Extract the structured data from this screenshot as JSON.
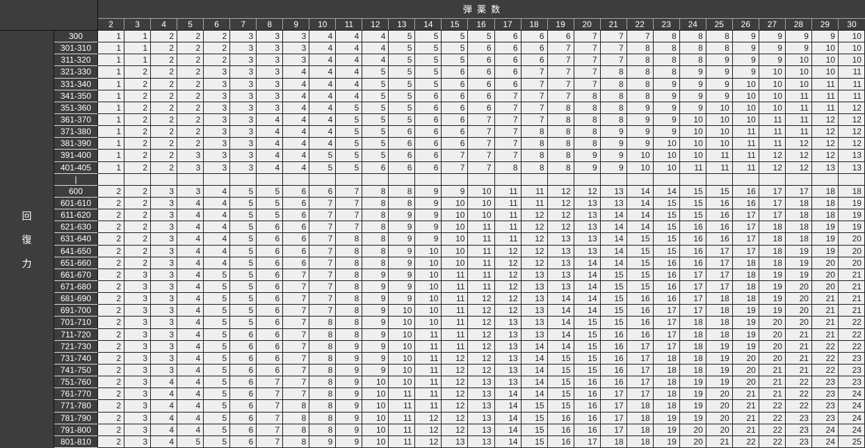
{
  "colors": {
    "header_bg": "#3d3d3d",
    "header_text": "#ffffff",
    "cell_bg": "#efefef",
    "cell_text": "#1f1f1f",
    "grid_dark": "#1c1c1c",
    "grid_light_on_dark": "#dcdcdc"
  },
  "table": {
    "title": "弾薬数",
    "side_label": "回復力",
    "columns": [
      2,
      3,
      4,
      5,
      6,
      7,
      8,
      9,
      10,
      11,
      12,
      13,
      14,
      15,
      16,
      17,
      18,
      19,
      20,
      21,
      22,
      23,
      24,
      25,
      26,
      27,
      28,
      29,
      30
    ],
    "rows": [
      {
        "label": "300",
        "values": [
          1,
          1,
          2,
          2,
          2,
          3,
          3,
          3,
          4,
          4,
          4,
          5,
          5,
          5,
          5,
          6,
          6,
          6,
          7,
          7,
          7,
          8,
          8,
          8,
          9,
          9,
          9,
          9,
          10
        ]
      },
      {
        "label": "301-310",
        "values": [
          1,
          1,
          2,
          2,
          2,
          3,
          3,
          3,
          4,
          4,
          4,
          5,
          5,
          5,
          6,
          6,
          6,
          7,
          7,
          7,
          8,
          8,
          8,
          8,
          9,
          9,
          9,
          10,
          10
        ]
      },
      {
        "label": "311-320",
        "values": [
          1,
          1,
          2,
          2,
          2,
          3,
          3,
          3,
          4,
          4,
          4,
          5,
          5,
          5,
          6,
          6,
          6,
          7,
          7,
          7,
          8,
          8,
          8,
          9,
          9,
          9,
          10,
          10,
          10
        ]
      },
      {
        "label": "321-330",
        "values": [
          1,
          2,
          2,
          2,
          3,
          3,
          3,
          4,
          4,
          4,
          5,
          5,
          5,
          6,
          6,
          6,
          7,
          7,
          7,
          8,
          8,
          8,
          9,
          9,
          9,
          10,
          10,
          10,
          11
        ]
      },
      {
        "label": "331-340",
        "values": [
          1,
          2,
          2,
          2,
          3,
          3,
          3,
          4,
          4,
          4,
          5,
          5,
          5,
          6,
          6,
          6,
          7,
          7,
          7,
          8,
          8,
          9,
          9,
          9,
          10,
          10,
          10,
          11,
          11
        ]
      },
      {
        "label": "341-350",
        "values": [
          1,
          2,
          2,
          2,
          3,
          3,
          3,
          4,
          4,
          4,
          5,
          5,
          6,
          6,
          6,
          7,
          7,
          7,
          8,
          8,
          8,
          9,
          9,
          9,
          10,
          10,
          11,
          11,
          11
        ]
      },
      {
        "label": "351-360",
        "values": [
          1,
          2,
          2,
          2,
          3,
          3,
          3,
          4,
          4,
          5,
          5,
          5,
          6,
          6,
          6,
          7,
          7,
          8,
          8,
          8,
          9,
          9,
          9,
          10,
          10,
          10,
          11,
          11,
          12
        ]
      },
      {
        "label": "361-370",
        "values": [
          1,
          2,
          2,
          2,
          3,
          3,
          4,
          4,
          4,
          5,
          5,
          5,
          6,
          6,
          7,
          7,
          7,
          8,
          8,
          8,
          9,
          9,
          10,
          10,
          10,
          11,
          11,
          12,
          12
        ]
      },
      {
        "label": "371-380",
        "values": [
          1,
          2,
          2,
          2,
          3,
          3,
          4,
          4,
          4,
          5,
          5,
          6,
          6,
          6,
          7,
          7,
          8,
          8,
          8,
          9,
          9,
          9,
          10,
          10,
          11,
          11,
          11,
          12,
          12
        ]
      },
      {
        "label": "381-390",
        "values": [
          1,
          2,
          2,
          2,
          3,
          3,
          4,
          4,
          4,
          5,
          5,
          6,
          6,
          6,
          7,
          7,
          8,
          8,
          8,
          9,
          9,
          10,
          10,
          10,
          11,
          11,
          12,
          12,
          12
        ]
      },
      {
        "label": "391-400",
        "values": [
          1,
          2,
          2,
          3,
          3,
          3,
          4,
          4,
          5,
          5,
          5,
          6,
          6,
          7,
          7,
          7,
          8,
          8,
          9,
          9,
          10,
          10,
          10,
          11,
          11,
          12,
          12,
          12,
          13
        ]
      },
      {
        "label": "401-405",
        "values": [
          1,
          2,
          2,
          3,
          3,
          3,
          4,
          4,
          5,
          5,
          6,
          6,
          6,
          7,
          7,
          8,
          8,
          8,
          9,
          9,
          10,
          10,
          11,
          11,
          11,
          12,
          12,
          13,
          13
        ]
      },
      {
        "label": "|",
        "separator": true,
        "values": []
      },
      {
        "label": "600",
        "values": [
          2,
          2,
          3,
          3,
          4,
          5,
          5,
          6,
          6,
          7,
          8,
          8,
          9,
          9,
          10,
          11,
          11,
          12,
          12,
          13,
          14,
          14,
          15,
          15,
          16,
          17,
          17,
          18,
          18
        ]
      },
      {
        "label": "601-610",
        "values": [
          2,
          2,
          3,
          4,
          4,
          5,
          5,
          6,
          7,
          7,
          8,
          8,
          9,
          10,
          10,
          11,
          11,
          12,
          13,
          13,
          14,
          15,
          15,
          16,
          16,
          17,
          18,
          18,
          19
        ]
      },
      {
        "label": "611-620",
        "values": [
          2,
          2,
          3,
          4,
          4,
          5,
          5,
          6,
          7,
          7,
          8,
          9,
          9,
          10,
          10,
          11,
          12,
          12,
          13,
          14,
          14,
          15,
          15,
          16,
          17,
          17,
          18,
          18,
          19
        ]
      },
      {
        "label": "621-630",
        "values": [
          2,
          2,
          3,
          4,
          4,
          5,
          6,
          6,
          7,
          7,
          8,
          9,
          9,
          10,
          11,
          11,
          12,
          12,
          13,
          14,
          14,
          15,
          16,
          16,
          17,
          18,
          18,
          19,
          19
        ]
      },
      {
        "label": "631-640",
        "values": [
          2,
          2,
          3,
          4,
          4,
          5,
          6,
          6,
          7,
          8,
          8,
          9,
          9,
          10,
          11,
          11,
          12,
          13,
          13,
          14,
          15,
          15,
          16,
          16,
          17,
          18,
          18,
          19,
          20
        ]
      },
      {
        "label": "641-650",
        "values": [
          2,
          2,
          3,
          4,
          4,
          5,
          6,
          6,
          7,
          8,
          8,
          9,
          10,
          10,
          11,
          12,
          12,
          13,
          13,
          14,
          15,
          15,
          16,
          17,
          17,
          18,
          19,
          19,
          20
        ]
      },
      {
        "label": "651-660",
        "values": [
          2,
          2,
          3,
          4,
          4,
          5,
          6,
          6,
          7,
          8,
          8,
          9,
          10,
          10,
          11,
          12,
          12,
          13,
          14,
          14,
          15,
          16,
          16,
          17,
          18,
          18,
          19,
          20,
          20
        ]
      },
      {
        "label": "661-670",
        "values": [
          2,
          3,
          3,
          4,
          5,
          5,
          6,
          7,
          7,
          8,
          9,
          9,
          10,
          11,
          11,
          12,
          13,
          13,
          14,
          15,
          15,
          16,
          17,
          17,
          18,
          19,
          19,
          20,
          21
        ]
      },
      {
        "label": "671-680",
        "values": [
          2,
          3,
          3,
          4,
          5,
          5,
          6,
          7,
          7,
          8,
          9,
          9,
          10,
          11,
          11,
          12,
          13,
          13,
          14,
          15,
          15,
          16,
          17,
          17,
          18,
          19,
          20,
          20,
          21
        ]
      },
      {
        "label": "681-690",
        "values": [
          2,
          3,
          3,
          4,
          5,
          5,
          6,
          7,
          7,
          8,
          9,
          9,
          10,
          11,
          12,
          12,
          13,
          14,
          14,
          15,
          16,
          16,
          17,
          18,
          18,
          19,
          20,
          21,
          21
        ]
      },
      {
        "label": "691-700",
        "values": [
          2,
          3,
          3,
          4,
          5,
          5,
          6,
          7,
          7,
          8,
          9,
          10,
          10,
          11,
          12,
          12,
          13,
          14,
          14,
          15,
          16,
          17,
          17,
          18,
          19,
          19,
          20,
          21,
          21
        ]
      },
      {
        "label": "701-710",
        "values": [
          2,
          3,
          3,
          4,
          5,
          5,
          6,
          7,
          8,
          8,
          9,
          10,
          10,
          11,
          12,
          13,
          13,
          14,
          15,
          15,
          16,
          17,
          18,
          18,
          19,
          20,
          20,
          21,
          22
        ]
      },
      {
        "label": "711-720",
        "values": [
          2,
          3,
          3,
          4,
          5,
          6,
          6,
          7,
          8,
          8,
          9,
          10,
          11,
          11,
          12,
          13,
          13,
          14,
          15,
          16,
          16,
          17,
          18,
          18,
          19,
          20,
          21,
          21,
          22
        ]
      },
      {
        "label": "721-730",
        "values": [
          2,
          3,
          3,
          4,
          5,
          6,
          6,
          7,
          8,
          9,
          9,
          10,
          11,
          11,
          12,
          13,
          14,
          14,
          15,
          16,
          17,
          17,
          18,
          19,
          19,
          20,
          21,
          22,
          22
        ]
      },
      {
        "label": "731-740",
        "values": [
          2,
          3,
          3,
          4,
          5,
          6,
          6,
          7,
          8,
          9,
          9,
          10,
          11,
          12,
          12,
          13,
          14,
          15,
          15,
          16,
          17,
          18,
          18,
          19,
          20,
          20,
          21,
          22,
          23
        ]
      },
      {
        "label": "741-750",
        "values": [
          2,
          3,
          3,
          4,
          5,
          6,
          6,
          7,
          8,
          9,
          9,
          10,
          11,
          12,
          12,
          13,
          14,
          15,
          15,
          16,
          17,
          18,
          18,
          19,
          20,
          21,
          21,
          22,
          23
        ]
      },
      {
        "label": "751-760",
        "values": [
          2,
          3,
          4,
          4,
          5,
          6,
          7,
          7,
          8,
          9,
          10,
          10,
          11,
          12,
          13,
          13,
          14,
          15,
          16,
          16,
          17,
          18,
          19,
          19,
          20,
          21,
          22,
          23,
          23
        ]
      },
      {
        "label": "761-770",
        "values": [
          2,
          3,
          4,
          4,
          5,
          6,
          7,
          7,
          8,
          9,
          10,
          11,
          11,
          12,
          13,
          14,
          14,
          15,
          16,
          17,
          17,
          18,
          19,
          20,
          21,
          21,
          22,
          23,
          24
        ]
      },
      {
        "label": "771-780",
        "values": [
          2,
          3,
          4,
          4,
          5,
          6,
          7,
          8,
          8,
          9,
          10,
          11,
          11,
          12,
          13,
          14,
          15,
          15,
          16,
          17,
          18,
          18,
          19,
          20,
          21,
          22,
          22,
          23,
          24
        ]
      },
      {
        "label": "781-790",
        "values": [
          2,
          3,
          4,
          4,
          5,
          6,
          7,
          8,
          8,
          9,
          10,
          11,
          12,
          12,
          13,
          14,
          15,
          16,
          16,
          17,
          18,
          19,
          19,
          20,
          21,
          22,
          23,
          23,
          24
        ]
      },
      {
        "label": "791-800",
        "values": [
          2,
          3,
          4,
          4,
          5,
          6,
          7,
          8,
          8,
          9,
          10,
          11,
          12,
          12,
          13,
          14,
          15,
          16,
          16,
          17,
          18,
          19,
          20,
          20,
          21,
          22,
          23,
          24,
          24
        ]
      },
      {
        "label": "801-810",
        "values": [
          2,
          3,
          4,
          5,
          5,
          6,
          7,
          8,
          9,
          9,
          10,
          11,
          12,
          13,
          13,
          14,
          15,
          16,
          17,
          18,
          18,
          19,
          20,
          21,
          22,
          22,
          23,
          24,
          25
        ]
      }
    ]
  }
}
